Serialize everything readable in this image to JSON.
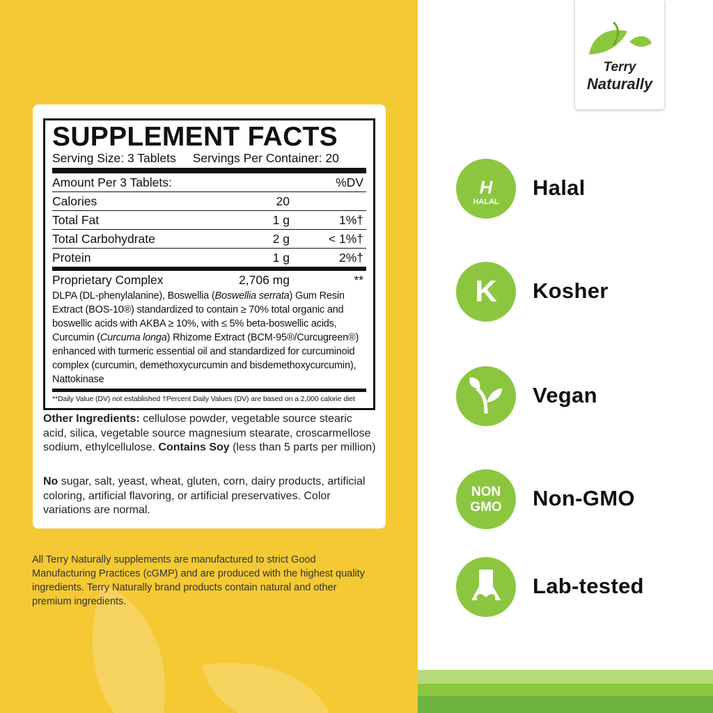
{
  "brand": {
    "line1": "Terry",
    "line2": "Naturally"
  },
  "facts": {
    "title": "SUPPLEMENT FACTS",
    "serving_size": "Serving Size: 3 Tablets",
    "servings_per_container": "Servings Per Container: 20",
    "amount_header": "Amount Per 3 Tablets:",
    "dv_header": "%DV",
    "rows": [
      {
        "name": "Calories",
        "amount": "20"
      },
      {
        "name": "Total Fat",
        "amount": "1 g",
        "dv": "1%†"
      },
      {
        "name": "Total Carbohydrate",
        "amount": "2 g",
        "dv": "< 1%†"
      },
      {
        "name": "Protein",
        "amount": "1 g",
        "dv": "2%†"
      }
    ],
    "complex": {
      "name": "Proprietary Complex",
      "amount": "2,706 mg",
      "dv": "**",
      "description": [
        {
          "text": "DLPA (DL-phenylalanine), Boswellia ("
        },
        {
          "text": "Boswellia serrata",
          "italic": true
        },
        {
          "text": ") Gum Resin Extract (BOS-10®) standardized to contain ≥ 70% total organic and boswellic acids with AKBA ≥ 10%, with ≤ 5% beta-boswellic acids, Curcumin ("
        },
        {
          "text": "Curcuma longa",
          "italic": true
        },
        {
          "text": ") Rhizome Extract (BCM-95®/Curcugreen®) enhanced with turmeric essential oil and standardized for curcuminoid complex (curcumin, demethoxycurcumin and bisdemethoxycurcumin), Nattokinase"
        }
      ]
    },
    "footnote": "**Daily Value (DV) not established   †Percent Daily Values (DV) are based on a 2,000 calorie diet"
  },
  "other_ingredients": [
    {
      "text": "Other Ingredients:",
      "bold": true
    },
    {
      "text": " cellulose powder, vegetable source stearic acid, silica, vegetable source magnesium stearate, croscarmellose sodium, ethylcellulose. "
    },
    {
      "text": "Contains Soy",
      "bold": true
    },
    {
      "text": " (less than 5 parts per million)"
    }
  ],
  "free_from": [
    {
      "text": "No",
      "bold": true
    },
    {
      "text": " sugar, salt, yeast, wheat, gluten, corn, dairy products, artificial coloring, artificial flavoring, or artificial preservatives. Color variations are normal."
    }
  ],
  "footer": "All Terry Naturally supplements are manufactured to strict Good Manufacturing Practices (cGMP) and are produced with the highest quality ingredients. Terry Naturally brand products contain natural and other premium ingredients.",
  "badges": [
    {
      "label": "Halal",
      "icon_text": [
        "H",
        "HALAL"
      ]
    },
    {
      "label": "Kosher",
      "icon_text": [
        "K"
      ]
    },
    {
      "label": "Vegan"
    },
    {
      "label": "Non-GMO",
      "icon_text": [
        "NON",
        "GMO"
      ]
    },
    {
      "label": "Lab-tested"
    }
  ]
}
